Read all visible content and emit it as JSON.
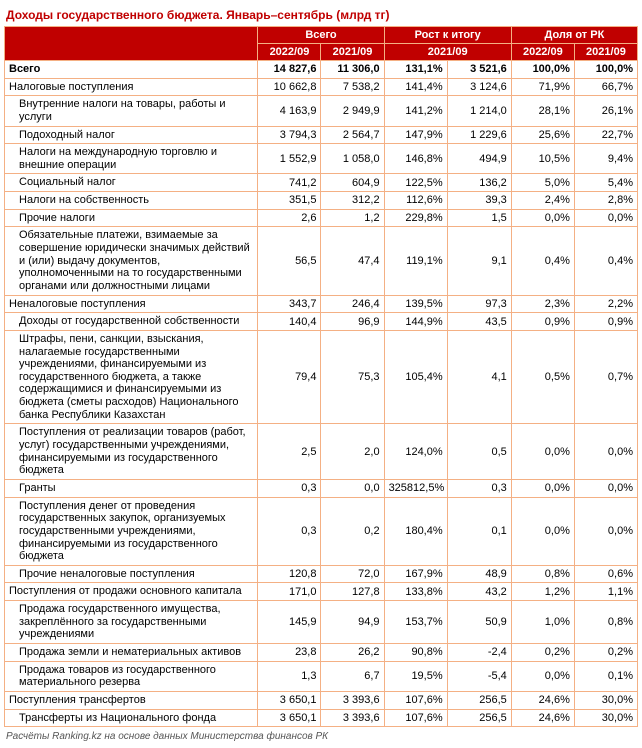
{
  "title": "Доходы государственного бюджета. Январь–сентябрь (млрд тг)",
  "footnote": "Расчёты Ranking.kz на основе данных Министерства финансов РК",
  "colors": {
    "header_bg": "#c00000",
    "header_fg": "#ffffff",
    "border": "#f4b084",
    "title": "#c00000"
  },
  "header": {
    "group_total": "Всего",
    "group_growth": "Рост к итогу",
    "group_share": "Доля от РК",
    "col_2022": "2022/09",
    "col_2021": "2021/09",
    "col_growth_ref": "2021/09",
    "col_share_2022": "2022/09",
    "col_share_2021": "2021/09"
  },
  "rows": [
    {
      "level": 0,
      "label": "Всего",
      "v1": "14 827,6",
      "v2": "11 306,0",
      "g1": "131,1%",
      "g2": "3 521,6",
      "s1": "100,0%",
      "s2": "100,0%"
    },
    {
      "level": 1,
      "label": "Налоговые поступления",
      "v1": "10 662,8",
      "v2": "7 538,2",
      "g1": "141,4%",
      "g2": "3 124,6",
      "s1": "71,9%",
      "s2": "66,7%"
    },
    {
      "level": 2,
      "label": "Внутренние налоги на товары, работы и услуги",
      "v1": "4 163,9",
      "v2": "2 949,9",
      "g1": "141,2%",
      "g2": "1 214,0",
      "s1": "28,1%",
      "s2": "26,1%"
    },
    {
      "level": 2,
      "label": "Подоходный налог",
      "v1": "3 794,3",
      "v2": "2 564,7",
      "g1": "147,9%",
      "g2": "1 229,6",
      "s1": "25,6%",
      "s2": "22,7%"
    },
    {
      "level": 2,
      "label": "Налоги на международную торговлю и внешние операции",
      "v1": "1 552,9",
      "v2": "1 058,0",
      "g1": "146,8%",
      "g2": "494,9",
      "s1": "10,5%",
      "s2": "9,4%"
    },
    {
      "level": 2,
      "label": "Социальный налог",
      "v1": "741,2",
      "v2": "604,9",
      "g1": "122,5%",
      "g2": "136,2",
      "s1": "5,0%",
      "s2": "5,4%"
    },
    {
      "level": 2,
      "label": "Налоги на собственность",
      "v1": "351,5",
      "v2": "312,2",
      "g1": "112,6%",
      "g2": "39,3",
      "s1": "2,4%",
      "s2": "2,8%"
    },
    {
      "level": 2,
      "label": "Прочие налоги",
      "v1": "2,6",
      "v2": "1,2",
      "g1": "229,8%",
      "g2": "1,5",
      "s1": "0,0%",
      "s2": "0,0%"
    },
    {
      "level": 2,
      "label": "Обязательные платежи, взимаемые за совершение юридически значимых действий и (или) выдачу документов, уполномоченными на то государственными органами или должностными лицами",
      "v1": "56,5",
      "v2": "47,4",
      "g1": "119,1%",
      "g2": "9,1",
      "s1": "0,4%",
      "s2": "0,4%"
    },
    {
      "level": 1,
      "label": "Неналоговые поступления",
      "v1": "343,7",
      "v2": "246,4",
      "g1": "139,5%",
      "g2": "97,3",
      "s1": "2,3%",
      "s2": "2,2%"
    },
    {
      "level": 2,
      "label": "Доходы от государственной собственности",
      "v1": "140,4",
      "v2": "96,9",
      "g1": "144,9%",
      "g2": "43,5",
      "s1": "0,9%",
      "s2": "0,9%"
    },
    {
      "level": 2,
      "label": "Штрафы, пени, санкции, взыскания, налагаемые государственными учреждениями, финансируемыми из государственного бюджета, а также содержащимися и финансируемыми из бюджета (сметы расходов) Национального банка Республики Казахстан",
      "v1": "79,4",
      "v2": "75,3",
      "g1": "105,4%",
      "g2": "4,1",
      "s1": "0,5%",
      "s2": "0,7%"
    },
    {
      "level": 2,
      "label": "Поступления от реализации товаров (работ, услуг) государственными учреждениями, финансируемыми из государственного бюджета",
      "v1": "2,5",
      "v2": "2,0",
      "g1": "124,0%",
      "g2": "0,5",
      "s1": "0,0%",
      "s2": "0,0%"
    },
    {
      "level": 2,
      "label": "Гранты",
      "v1": "0,3",
      "v2": "0,0",
      "g1": "325812,5%",
      "g2": "0,3",
      "s1": "0,0%",
      "s2": "0,0%"
    },
    {
      "level": 2,
      "label": "Поступления денег от проведения государственных закупок, организуемых государственными учреждениями, финансируемыми из государственного бюджета",
      "v1": "0,3",
      "v2": "0,2",
      "g1": "180,4%",
      "g2": "0,1",
      "s1": "0,0%",
      "s2": "0,0%"
    },
    {
      "level": 2,
      "label": "Прочие неналоговые поступления",
      "v1": "120,8",
      "v2": "72,0",
      "g1": "167,9%",
      "g2": "48,9",
      "s1": "0,8%",
      "s2": "0,6%"
    },
    {
      "level": 1,
      "label": "Поступления от продажи основного капитала",
      "v1": "171,0",
      "v2": "127,8",
      "g1": "133,8%",
      "g2": "43,2",
      "s1": "1,2%",
      "s2": "1,1%"
    },
    {
      "level": 2,
      "label": "Продажа государственного имущества, закреплённого за государственными учреждениями",
      "v1": "145,9",
      "v2": "94,9",
      "g1": "153,7%",
      "g2": "50,9",
      "s1": "1,0%",
      "s2": "0,8%"
    },
    {
      "level": 2,
      "label": "Продажа земли и нематериальных активов",
      "v1": "23,8",
      "v2": "26,2",
      "g1": "90,8%",
      "g2": "-2,4",
      "s1": "0,2%",
      "s2": "0,2%"
    },
    {
      "level": 2,
      "label": "Продажа товаров из государственного материального резерва",
      "v1": "1,3",
      "v2": "6,7",
      "g1": "19,5%",
      "g2": "-5,4",
      "s1": "0,0%",
      "s2": "0,1%"
    },
    {
      "level": 1,
      "label": "Поступления трансфертов",
      "v1": "3 650,1",
      "v2": "3 393,6",
      "g1": "107,6%",
      "g2": "256,5",
      "s1": "24,6%",
      "s2": "30,0%"
    },
    {
      "level": 2,
      "label": "Трансферты из Национального фонда",
      "v1": "3 650,1",
      "v2": "3 393,6",
      "g1": "107,6%",
      "g2": "256,5",
      "s1": "24,6%",
      "s2": "30,0%"
    }
  ]
}
